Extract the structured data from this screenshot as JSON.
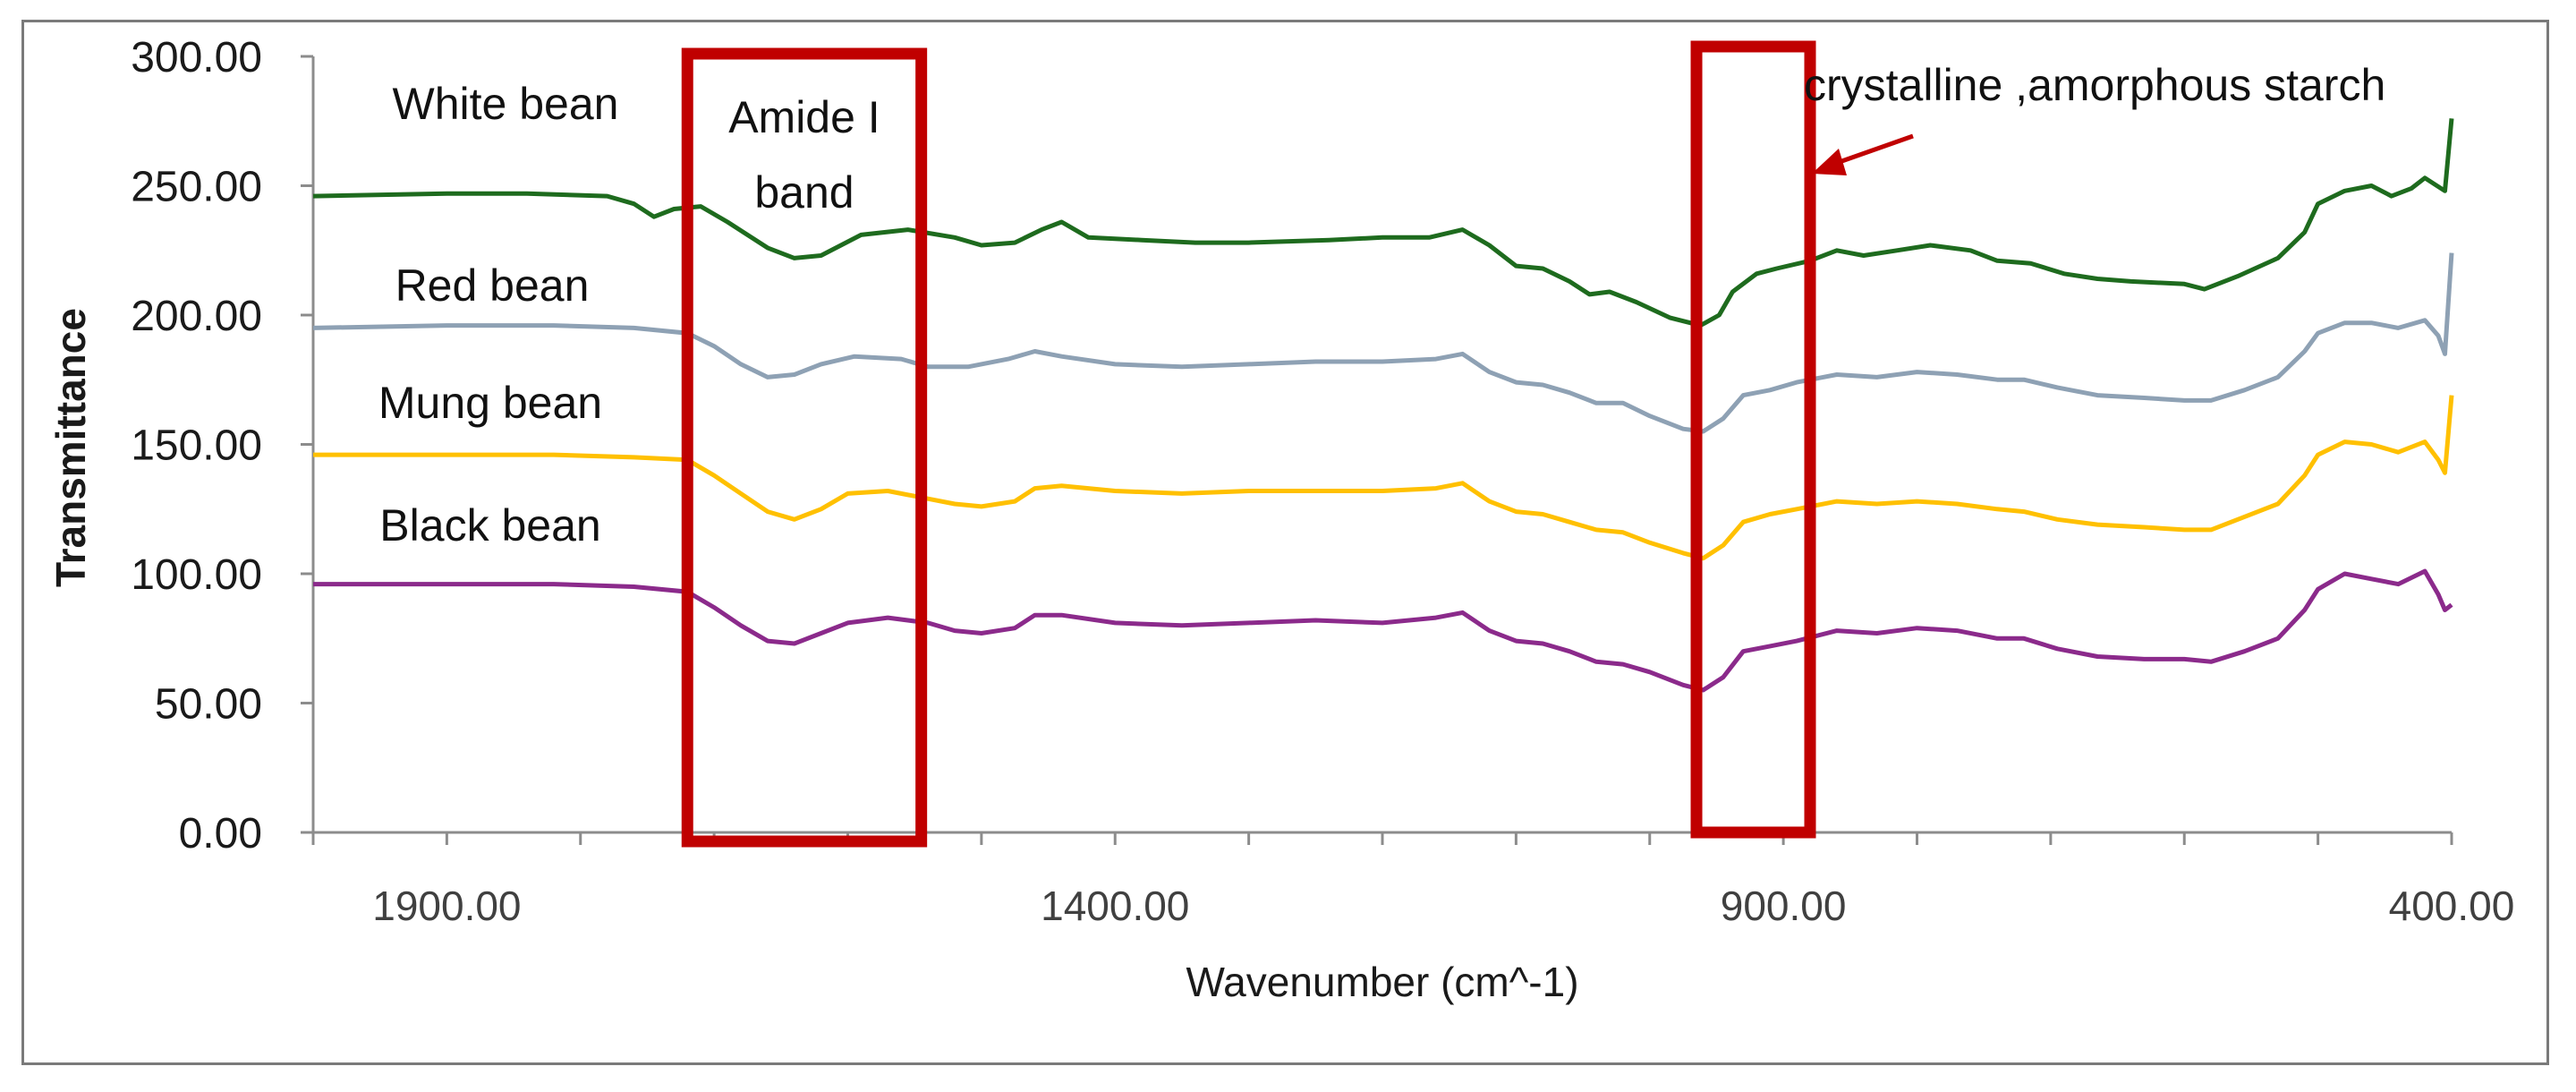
{
  "chart_data": {
    "type": "line",
    "xlabel": "Wavenumber (cm^-1)",
    "ylabel": "Transmittance",
    "xlim": [
      2000,
      400
    ],
    "ylim": [
      0,
      300
    ],
    "x_ticks": [
      {
        "value": 1900,
        "label": "1900.00"
      },
      {
        "value": 1400,
        "label": "1400.00"
      },
      {
        "value": 900,
        "label": "900.00"
      },
      {
        "value": 400,
        "label": "400.00"
      }
    ],
    "y_ticks": [
      {
        "value": 0,
        "label": "0.00"
      },
      {
        "value": 50,
        "label": "50.00"
      },
      {
        "value": 100,
        "label": "100.00"
      },
      {
        "value": 150,
        "label": "150.00"
      },
      {
        "value": 200,
        "label": "200.00"
      },
      {
        "value": 250,
        "label": "250.00"
      },
      {
        "value": 300,
        "label": "300.00"
      }
    ],
    "grid": false,
    "series": [
      {
        "name": "White bean",
        "color": "#1e6b1e",
        "points": [
          [
            2000,
            246
          ],
          [
            1900,
            247
          ],
          [
            1840,
            247
          ],
          [
            1780,
            246
          ],
          [
            1760,
            243
          ],
          [
            1745,
            238
          ],
          [
            1730,
            241
          ],
          [
            1710,
            242
          ],
          [
            1690,
            236
          ],
          [
            1660,
            226
          ],
          [
            1640,
            222
          ],
          [
            1620,
            223
          ],
          [
            1590,
            231
          ],
          [
            1555,
            233
          ],
          [
            1520,
            230
          ],
          [
            1500,
            227
          ],
          [
            1475,
            228
          ],
          [
            1455,
            233
          ],
          [
            1440,
            236
          ],
          [
            1420,
            230
          ],
          [
            1380,
            229
          ],
          [
            1340,
            228
          ],
          [
            1300,
            228
          ],
          [
            1240,
            229
          ],
          [
            1200,
            230
          ],
          [
            1165,
            230
          ],
          [
            1140,
            233
          ],
          [
            1120,
            227
          ],
          [
            1100,
            219
          ],
          [
            1080,
            218
          ],
          [
            1060,
            213
          ],
          [
            1045,
            208
          ],
          [
            1030,
            209
          ],
          [
            1010,
            205
          ],
          [
            985,
            199
          ],
          [
            962,
            196
          ],
          [
            948,
            200
          ],
          [
            938,
            209
          ],
          [
            920,
            216
          ],
          [
            905,
            218
          ],
          [
            880,
            221
          ],
          [
            860,
            225
          ],
          [
            840,
            223
          ],
          [
            815,
            225
          ],
          [
            790,
            227
          ],
          [
            760,
            225
          ],
          [
            740,
            221
          ],
          [
            715,
            220
          ],
          [
            690,
            216
          ],
          [
            665,
            214
          ],
          [
            640,
            213
          ],
          [
            600,
            212
          ],
          [
            585,
            210
          ],
          [
            560,
            215
          ],
          [
            530,
            222
          ],
          [
            510,
            232
          ],
          [
            500,
            243
          ],
          [
            480,
            248
          ],
          [
            460,
            250
          ],
          [
            445,
            246
          ],
          [
            430,
            249
          ],
          [
            420,
            253
          ],
          [
            405,
            248
          ],
          [
            400,
            276
          ]
        ]
      },
      {
        "name": "Red bean",
        "color": "#8ea1b4",
        "points": [
          [
            2000,
            195
          ],
          [
            1900,
            196
          ],
          [
            1820,
            196
          ],
          [
            1760,
            195
          ],
          [
            1720,
            193
          ],
          [
            1700,
            188
          ],
          [
            1680,
            181
          ],
          [
            1660,
            176
          ],
          [
            1640,
            177
          ],
          [
            1620,
            181
          ],
          [
            1595,
            184
          ],
          [
            1560,
            183
          ],
          [
            1540,
            180
          ],
          [
            1510,
            180
          ],
          [
            1480,
            183
          ],
          [
            1460,
            186
          ],
          [
            1440,
            184
          ],
          [
            1400,
            181
          ],
          [
            1350,
            180
          ],
          [
            1300,
            181
          ],
          [
            1250,
            182
          ],
          [
            1200,
            182
          ],
          [
            1160,
            183
          ],
          [
            1140,
            185
          ],
          [
            1120,
            178
          ],
          [
            1100,
            174
          ],
          [
            1080,
            173
          ],
          [
            1060,
            170
          ],
          [
            1040,
            166
          ],
          [
            1020,
            166
          ],
          [
            1000,
            161
          ],
          [
            975,
            156
          ],
          [
            960,
            155
          ],
          [
            945,
            160
          ],
          [
            930,
            169
          ],
          [
            910,
            171
          ],
          [
            890,
            174
          ],
          [
            860,
            177
          ],
          [
            830,
            176
          ],
          [
            800,
            178
          ],
          [
            770,
            177
          ],
          [
            740,
            175
          ],
          [
            720,
            175
          ],
          [
            695,
            172
          ],
          [
            665,
            169
          ],
          [
            630,
            168
          ],
          [
            600,
            167
          ],
          [
            580,
            167
          ],
          [
            555,
            171
          ],
          [
            530,
            176
          ],
          [
            510,
            186
          ],
          [
            500,
            193
          ],
          [
            480,
            197
          ],
          [
            460,
            197
          ],
          [
            440,
            195
          ],
          [
            420,
            198
          ],
          [
            410,
            192
          ],
          [
            405,
            185
          ],
          [
            400,
            224
          ]
        ]
      },
      {
        "name": "Mung bean",
        "color": "#ffc000",
        "points": [
          [
            2000,
            146
          ],
          [
            1900,
            146
          ],
          [
            1820,
            146
          ],
          [
            1760,
            145
          ],
          [
            1720,
            144
          ],
          [
            1700,
            138
          ],
          [
            1680,
            131
          ],
          [
            1660,
            124
          ],
          [
            1640,
            121
          ],
          [
            1620,
            125
          ],
          [
            1600,
            131
          ],
          [
            1570,
            132
          ],
          [
            1540,
            129
          ],
          [
            1520,
            127
          ],
          [
            1500,
            126
          ],
          [
            1475,
            128
          ],
          [
            1460,
            133
          ],
          [
            1440,
            134
          ],
          [
            1400,
            132
          ],
          [
            1350,
            131
          ],
          [
            1300,
            132
          ],
          [
            1250,
            132
          ],
          [
            1200,
            132
          ],
          [
            1160,
            133
          ],
          [
            1140,
            135
          ],
          [
            1120,
            128
          ],
          [
            1100,
            124
          ],
          [
            1080,
            123
          ],
          [
            1060,
            120
          ],
          [
            1040,
            117
          ],
          [
            1020,
            116
          ],
          [
            1000,
            112
          ],
          [
            975,
            108
          ],
          [
            960,
            106
          ],
          [
            945,
            111
          ],
          [
            930,
            120
          ],
          [
            910,
            123
          ],
          [
            890,
            125
          ],
          [
            860,
            128
          ],
          [
            830,
            127
          ],
          [
            800,
            128
          ],
          [
            770,
            127
          ],
          [
            740,
            125
          ],
          [
            720,
            124
          ],
          [
            695,
            121
          ],
          [
            665,
            119
          ],
          [
            630,
            118
          ],
          [
            600,
            117
          ],
          [
            580,
            117
          ],
          [
            555,
            122
          ],
          [
            530,
            127
          ],
          [
            510,
            138
          ],
          [
            500,
            146
          ],
          [
            480,
            151
          ],
          [
            460,
            150
          ],
          [
            440,
            147
          ],
          [
            420,
            151
          ],
          [
            410,
            144
          ],
          [
            405,
            139
          ],
          [
            400,
            169
          ]
        ]
      },
      {
        "name": "Black bean",
        "color": "#8b2a8b",
        "points": [
          [
            2000,
            96
          ],
          [
            1900,
            96
          ],
          [
            1820,
            96
          ],
          [
            1760,
            95
          ],
          [
            1720,
            93
          ],
          [
            1700,
            87
          ],
          [
            1680,
            80
          ],
          [
            1660,
            74
          ],
          [
            1640,
            73
          ],
          [
            1620,
            77
          ],
          [
            1600,
            81
          ],
          [
            1570,
            83
          ],
          [
            1540,
            81
          ],
          [
            1520,
            78
          ],
          [
            1500,
            77
          ],
          [
            1475,
            79
          ],
          [
            1460,
            84
          ],
          [
            1440,
            84
          ],
          [
            1400,
            81
          ],
          [
            1350,
            80
          ],
          [
            1300,
            81
          ],
          [
            1250,
            82
          ],
          [
            1200,
            81
          ],
          [
            1160,
            83
          ],
          [
            1140,
            85
          ],
          [
            1120,
            78
          ],
          [
            1100,
            74
          ],
          [
            1080,
            73
          ],
          [
            1060,
            70
          ],
          [
            1040,
            66
          ],
          [
            1020,
            65
          ],
          [
            1000,
            62
          ],
          [
            975,
            57
          ],
          [
            960,
            55
          ],
          [
            945,
            60
          ],
          [
            930,
            70
          ],
          [
            910,
            72
          ],
          [
            890,
            74
          ],
          [
            860,
            78
          ],
          [
            830,
            77
          ],
          [
            800,
            79
          ],
          [
            770,
            78
          ],
          [
            740,
            75
          ],
          [
            720,
            75
          ],
          [
            695,
            71
          ],
          [
            665,
            68
          ],
          [
            630,
            67
          ],
          [
            600,
            67
          ],
          [
            580,
            66
          ],
          [
            555,
            70
          ],
          [
            530,
            75
          ],
          [
            510,
            86
          ],
          [
            500,
            94
          ],
          [
            480,
            100
          ],
          [
            460,
            98
          ],
          [
            440,
            96
          ],
          [
            420,
            101
          ],
          [
            410,
            92
          ],
          [
            405,
            86
          ],
          [
            400,
            88
          ]
        ]
      }
    ],
    "annotations": {
      "amide_box_label": [
        "Amide I",
        "band"
      ],
      "starch_label": "crystalline ,amorphous starch",
      "box_color": "#c00000",
      "amide_box_range": [
        1720,
        1545
      ],
      "starch_box_range": [
        965,
        880
      ]
    }
  }
}
